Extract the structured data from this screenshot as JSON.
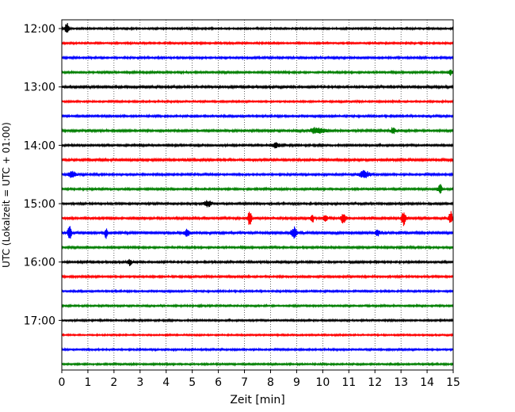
{
  "chart_data": {
    "type": "line",
    "subtype": "helicorder-seismogram",
    "title": "",
    "xlabel": "Zeit  [min]",
    "ylabel": "UTC (Lokalzeit = UTC + 01:00)",
    "xlim": [
      0,
      15
    ],
    "xticks": [
      0,
      1,
      2,
      3,
      4,
      5,
      6,
      7,
      8,
      9,
      10,
      11,
      12,
      13,
      14,
      15
    ],
    "y_tick_labels": [
      "12:00",
      "13:00",
      "14:00",
      "15:00",
      "16:00",
      "17:00"
    ],
    "y_tick_row_index": [
      0,
      4,
      8,
      12,
      16,
      20
    ],
    "grid": "vertical-dotted",
    "colors": [
      "#000000",
      "#ff0000",
      "#0000ff",
      "#007f00"
    ],
    "rows": [
      {
        "start": "12:00",
        "color": "#000000",
        "noise": 0.9,
        "events": [
          {
            "t": 0.2,
            "amp": 3.0,
            "w": 0.06
          }
        ]
      },
      {
        "start": "12:15",
        "color": "#ff0000",
        "noise": 0.9,
        "events": []
      },
      {
        "start": "12:30",
        "color": "#0000ff",
        "noise": 1.0,
        "events": []
      },
      {
        "start": "12:45",
        "color": "#007f00",
        "noise": 1.0,
        "events": [
          {
            "t": 14.9,
            "amp": 2.0,
            "w": 0.05
          }
        ]
      },
      {
        "start": "13:00",
        "color": "#000000",
        "noise": 1.1,
        "events": []
      },
      {
        "start": "13:15",
        "color": "#ff0000",
        "noise": 0.9,
        "events": []
      },
      {
        "start": "13:30",
        "color": "#0000ff",
        "noise": 1.0,
        "events": []
      },
      {
        "start": "13:45",
        "color": "#007f00",
        "noise": 1.1,
        "events": [
          {
            "t": 9.8,
            "amp": 1.8,
            "w": 0.2
          },
          {
            "t": 12.7,
            "amp": 2.0,
            "w": 0.06
          }
        ]
      },
      {
        "start": "14:00",
        "color": "#000000",
        "noise": 1.0,
        "events": [
          {
            "t": 8.2,
            "amp": 1.6,
            "w": 0.1
          }
        ]
      },
      {
        "start": "14:15",
        "color": "#ff0000",
        "noise": 1.2,
        "events": []
      },
      {
        "start": "14:30",
        "color": "#0000ff",
        "noise": 1.0,
        "events": [
          {
            "t": 0.4,
            "amp": 1.8,
            "w": 0.1
          },
          {
            "t": 11.6,
            "amp": 2.0,
            "w": 0.15
          }
        ]
      },
      {
        "start": "14:45",
        "color": "#007f00",
        "noise": 1.0,
        "events": [
          {
            "t": 14.5,
            "amp": 2.6,
            "w": 0.06
          }
        ]
      },
      {
        "start": "15:00",
        "color": "#000000",
        "noise": 1.0,
        "events": [
          {
            "t": 5.6,
            "amp": 1.8,
            "w": 0.1
          }
        ]
      },
      {
        "start": "15:15",
        "color": "#ff0000",
        "noise": 1.1,
        "events": [
          {
            "t": 7.2,
            "amp": 4.2,
            "w": 0.05
          },
          {
            "t": 9.6,
            "amp": 2.4,
            "w": 0.05
          },
          {
            "t": 10.1,
            "amp": 2.0,
            "w": 0.06
          },
          {
            "t": 10.8,
            "amp": 3.0,
            "w": 0.07
          },
          {
            "t": 13.1,
            "amp": 4.5,
            "w": 0.06
          },
          {
            "t": 14.9,
            "amp": 3.8,
            "w": 0.05
          }
        ]
      },
      {
        "start": "15:30",
        "color": "#0000ff",
        "noise": 1.2,
        "events": [
          {
            "t": 0.3,
            "amp": 3.8,
            "w": 0.05
          },
          {
            "t": 1.7,
            "amp": 3.0,
            "w": 0.04
          },
          {
            "t": 4.8,
            "amp": 2.0,
            "w": 0.08
          },
          {
            "t": 8.9,
            "amp": 3.2,
            "w": 0.08
          },
          {
            "t": 12.1,
            "amp": 1.8,
            "w": 0.06
          }
        ]
      },
      {
        "start": "15:45",
        "color": "#007f00",
        "noise": 1.0,
        "events": []
      },
      {
        "start": "16:00",
        "color": "#000000",
        "noise": 1.0,
        "events": [
          {
            "t": 2.6,
            "amp": 1.8,
            "w": 0.06
          }
        ]
      },
      {
        "start": "16:15",
        "color": "#ff0000",
        "noise": 1.0,
        "events": []
      },
      {
        "start": "16:30",
        "color": "#0000ff",
        "noise": 0.9,
        "events": []
      },
      {
        "start": "16:45",
        "color": "#007f00",
        "noise": 0.9,
        "events": []
      },
      {
        "start": "17:00",
        "color": "#000000",
        "noise": 0.9,
        "events": []
      },
      {
        "start": "17:15",
        "color": "#ff0000",
        "noise": 0.8,
        "events": []
      },
      {
        "start": "17:30",
        "color": "#0000ff",
        "noise": 0.9,
        "events": []
      },
      {
        "start": "17:45",
        "color": "#007f00",
        "noise": 0.9,
        "events": []
      }
    ]
  }
}
